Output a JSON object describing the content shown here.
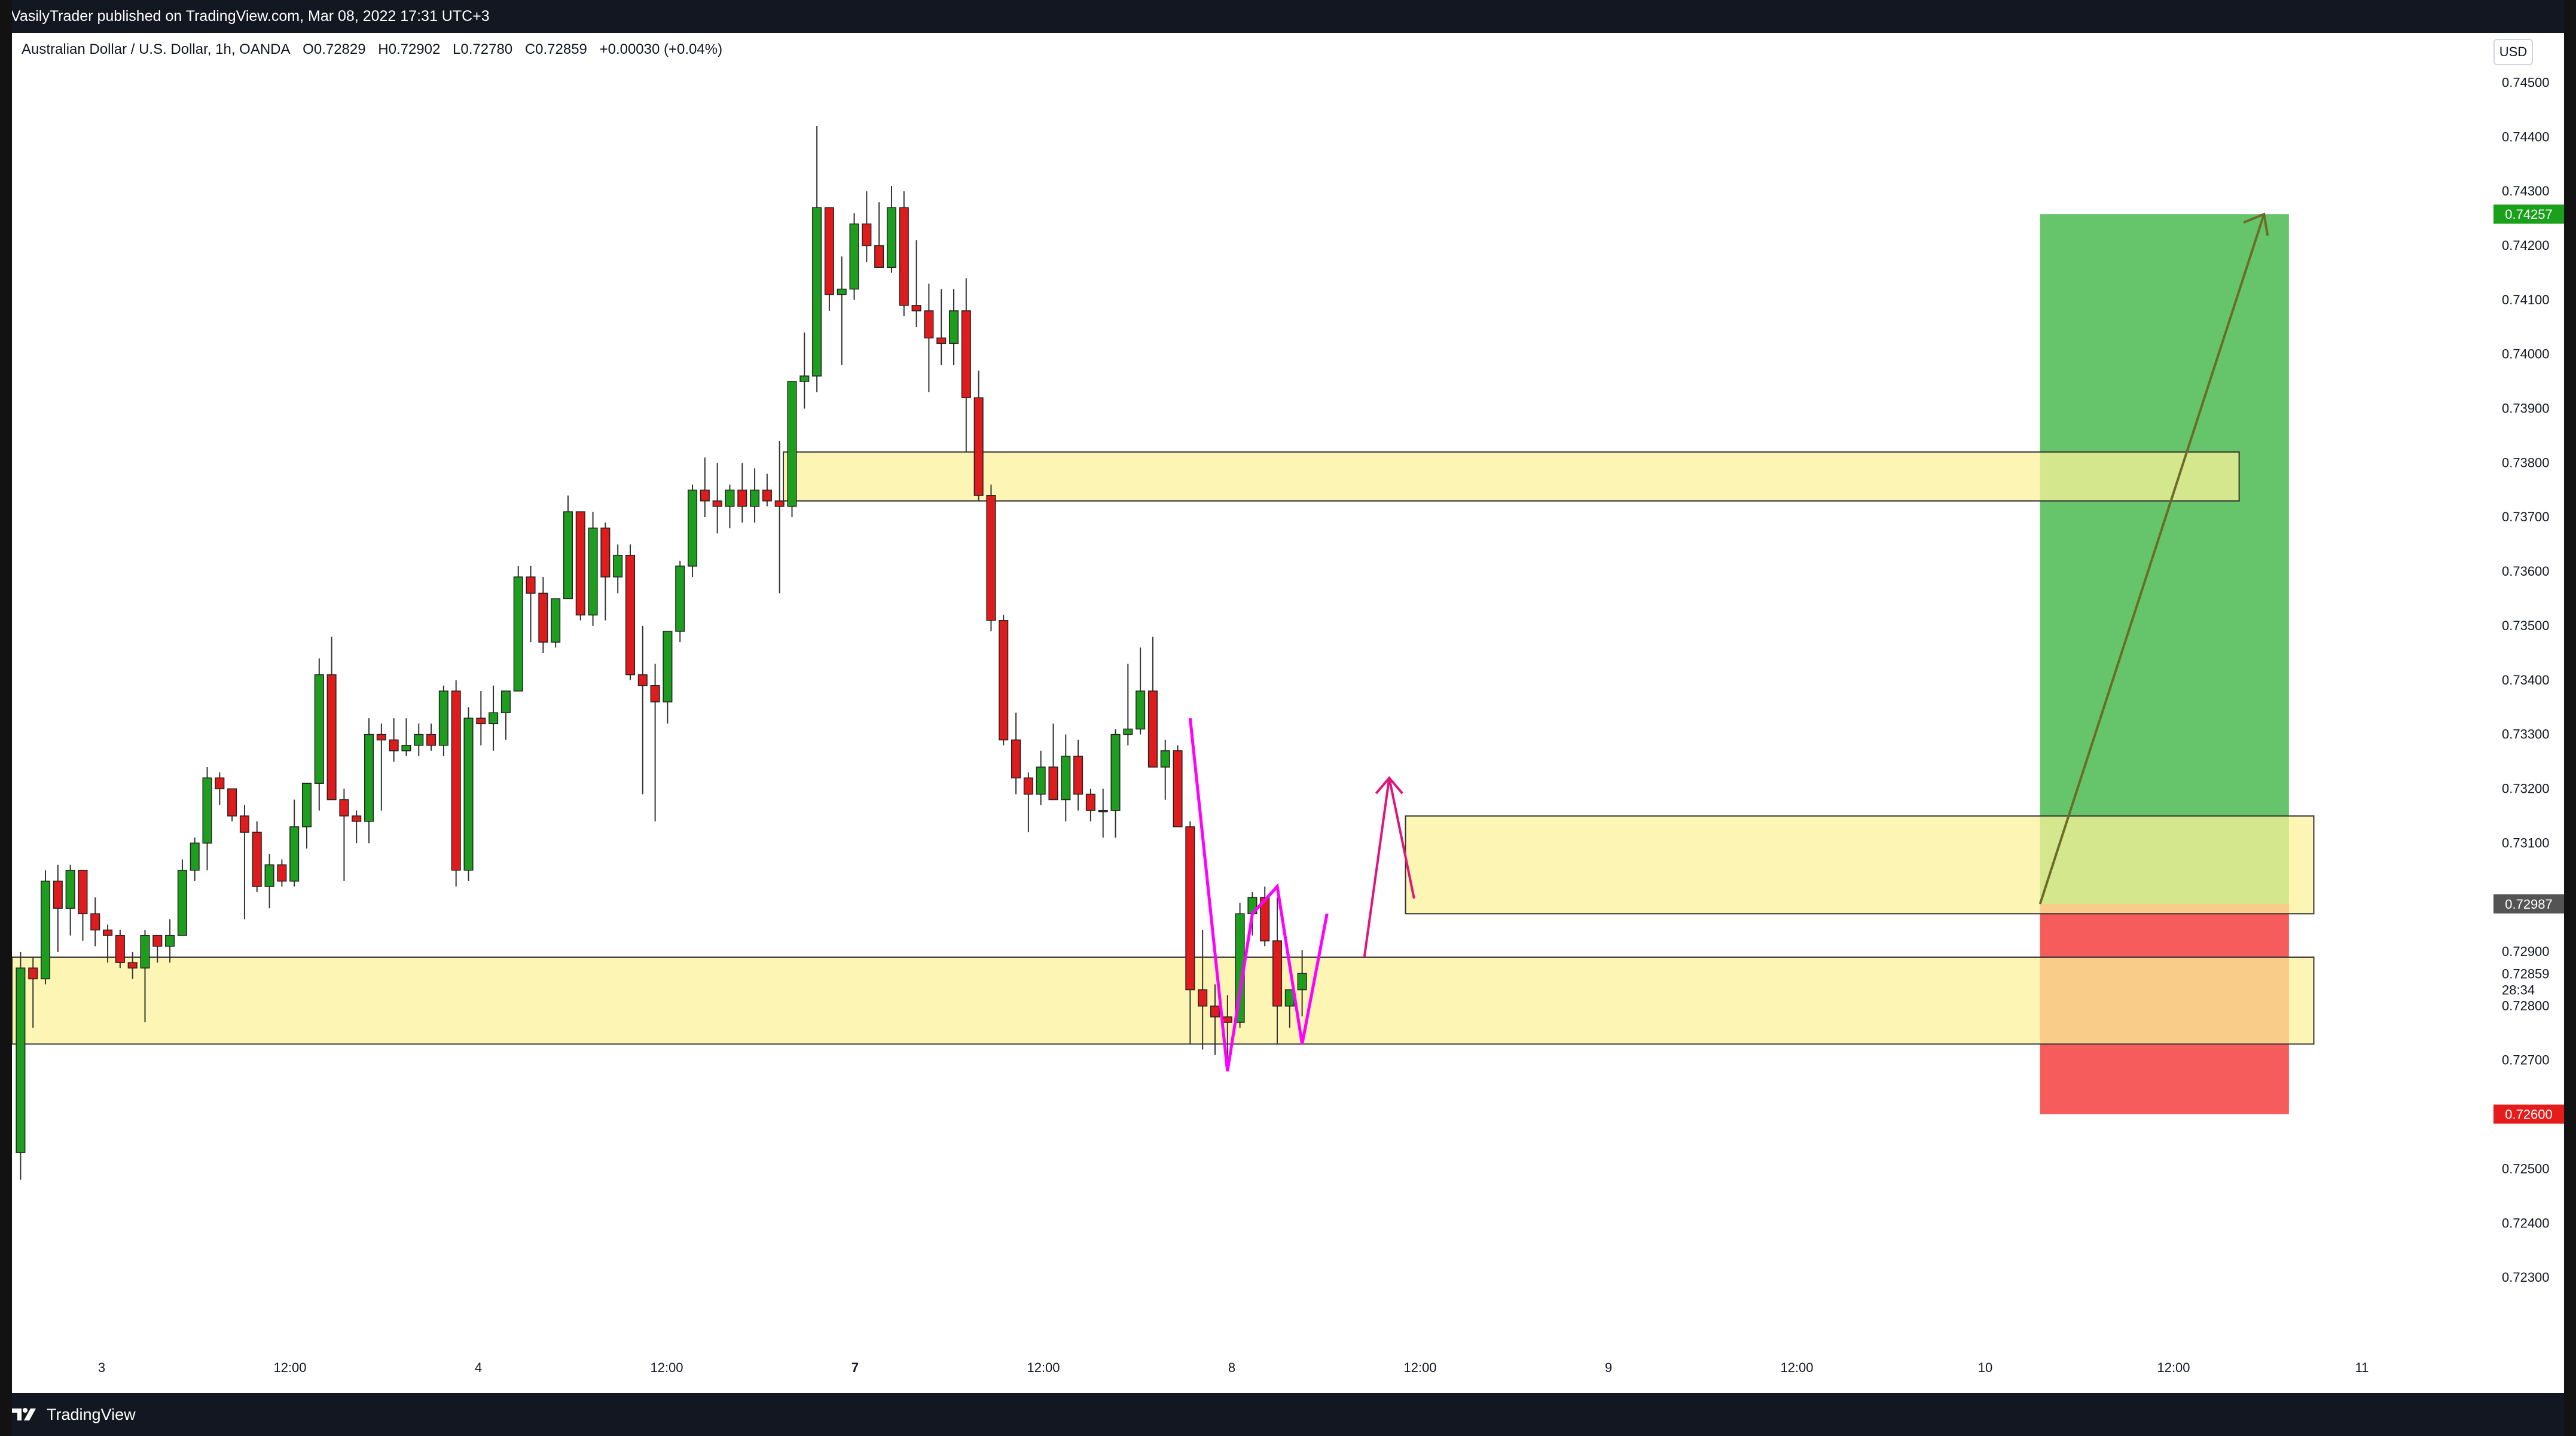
{
  "header": {
    "published": "VasilyTrader published on TradingView.com, Mar 08, 2022 17:31 UTC+3"
  },
  "legend": {
    "symbol": "Australian Dollar / U.S. Dollar, 1h, OANDA",
    "open": "O0.72829",
    "high": "H0.72902",
    "low": "L0.72780",
    "close": "C0.72859",
    "change": "+0.00030 (+0.04%)"
  },
  "currency": "USD",
  "footer": {
    "brand": "TradingView"
  },
  "colors": {
    "up": "#1e9e1e",
    "down": "#e01b1b",
    "zone_fill": "#fbf29a",
    "zone_stroke": "#333333",
    "target_fill": "#66c56a",
    "stop_fill": "#f75c5c",
    "arrow_magenta": "#ff00ff",
    "arrow_pink": "#e0157a",
    "arrow_olive": "#6b6b2a",
    "target_tag": "#1aa01a",
    "stop_tag": "#e51c1c",
    "price_tag": "#545454"
  },
  "chart_data": {
    "type": "candlestick",
    "title": "",
    "ylim": [
      0.722,
      0.7455
    ],
    "y_ticks": [
      "0.74500",
      "0.74400",
      "0.74300",
      "0.74200",
      "0.74100",
      "0.74000",
      "0.73900",
      "0.73800",
      "0.73700",
      "0.73600",
      "0.73500",
      "0.73400",
      "0.73300",
      "0.73200",
      "0.73100",
      "0.72900",
      "0.72800",
      "0.72700",
      "0.72500",
      "0.72400",
      "0.72300"
    ],
    "x_ticks": [
      "3",
      "12:00",
      "4",
      "12:00",
      "7",
      "12:00",
      "8",
      "12:00",
      "9",
      "12:00",
      "10",
      "12:00",
      "11"
    ],
    "x_tick_bold": [
      false,
      false,
      false,
      false,
      true,
      false,
      false,
      false,
      false,
      false,
      false,
      false,
      false
    ],
    "x_range_bars": [
      0,
      198
    ],
    "candles": [
      [
        0.72529,
        0.72899,
        0.72479,
        0.72869
      ],
      [
        0.72869,
        0.72889,
        0.72759,
        0.72849
      ],
      [
        0.72849,
        0.73049,
        0.72839,
        0.73029
      ],
      [
        0.73029,
        0.73059,
        0.72899,
        0.72979
      ],
      [
        0.72979,
        0.73059,
        0.72929,
        0.73049
      ],
      [
        0.73049,
        0.73049,
        0.72919,
        0.72969
      ],
      [
        0.72969,
        0.72999,
        0.72909,
        0.72939
      ],
      [
        0.72939,
        0.72949,
        0.72879,
        0.72929
      ],
      [
        0.72929,
        0.72939,
        0.72869,
        0.72879
      ],
      [
        0.72879,
        0.72899,
        0.72849,
        0.72869
      ],
      [
        0.72869,
        0.72939,
        0.72769,
        0.72929
      ],
      [
        0.72929,
        0.72929,
        0.72879,
        0.72909
      ],
      [
        0.72909,
        0.72959,
        0.72879,
        0.72929
      ],
      [
        0.72929,
        0.73069,
        0.72929,
        0.73049
      ],
      [
        0.73049,
        0.73109,
        0.73029,
        0.73099
      ],
      [
        0.73099,
        0.73239,
        0.73049,
        0.73219
      ],
      [
        0.73219,
        0.73229,
        0.73169,
        0.73199
      ],
      [
        0.73199,
        0.73199,
        0.73139,
        0.73149
      ],
      [
        0.73149,
        0.73169,
        0.72959,
        0.73119
      ],
      [
        0.73119,
        0.73139,
        0.73009,
        0.73019
      ],
      [
        0.73019,
        0.73079,
        0.72979,
        0.73059
      ],
      [
        0.73059,
        0.73069,
        0.73019,
        0.73029
      ],
      [
        0.73029,
        0.73179,
        0.73019,
        0.73129
      ],
      [
        0.73129,
        0.73209,
        0.73089,
        0.73209
      ],
      [
        0.73209,
        0.73439,
        0.73159,
        0.73409
      ],
      [
        0.73409,
        0.73479,
        0.73189,
        0.73179
      ],
      [
        0.73179,
        0.73199,
        0.73029,
        0.73149
      ],
      [
        0.73149,
        0.73159,
        0.73099,
        0.73139
      ],
      [
        0.73139,
        0.73329,
        0.73099,
        0.73299
      ],
      [
        0.73299,
        0.73319,
        0.73159,
        0.73289
      ],
      [
        0.73289,
        0.73329,
        0.73249,
        0.73269
      ],
      [
        0.73269,
        0.73329,
        0.73259,
        0.73279
      ],
      [
        0.73279,
        0.73319,
        0.73259,
        0.73299
      ],
      [
        0.73299,
        0.73319,
        0.73269,
        0.73279
      ],
      [
        0.73279,
        0.73389,
        0.73259,
        0.73379
      ],
      [
        0.73379,
        0.73399,
        0.73019,
        0.73049
      ],
      [
        0.73049,
        0.73349,
        0.73029,
        0.73329
      ],
      [
        0.73329,
        0.73379,
        0.73279,
        0.73319
      ],
      [
        0.73319,
        0.73389,
        0.73269,
        0.73339
      ],
      [
        0.73339,
        0.73379,
        0.73289,
        0.73379
      ],
      [
        0.73379,
        0.73609,
        0.73379,
        0.73589
      ],
      [
        0.73589,
        0.73609,
        0.73469,
        0.73559
      ],
      [
        0.73559,
        0.73589,
        0.73449,
        0.73469
      ],
      [
        0.73469,
        0.73549,
        0.73459,
        0.73549
      ],
      [
        0.73549,
        0.73739,
        0.73549,
        0.73709
      ],
      [
        0.73709,
        0.73709,
        0.73509,
        0.73519
      ],
      [
        0.73519,
        0.73709,
        0.73499,
        0.73679
      ],
      [
        0.73679,
        0.73689,
        0.73509,
        0.73589
      ],
      [
        0.73589,
        0.73649,
        0.73559,
        0.73629
      ],
      [
        0.73629,
        0.73649,
        0.73399,
        0.73409
      ],
      [
        0.73409,
        0.73499,
        0.73189,
        0.73389
      ],
      [
        0.73389,
        0.73429,
        0.73139,
        0.73359
      ],
      [
        0.73359,
        0.73489,
        0.73319,
        0.73489
      ],
      [
        0.73489,
        0.73619,
        0.73469,
        0.73609
      ],
      [
        0.73609,
        0.73759,
        0.73589,
        0.73749
      ],
      [
        0.73749,
        0.73809,
        0.73699,
        0.73729
      ],
      [
        0.73729,
        0.73799,
        0.73669,
        0.73719
      ],
      [
        0.73719,
        0.73759,
        0.73679,
        0.73749
      ],
      [
        0.73749,
        0.73799,
        0.73689,
        0.73719
      ],
      [
        0.73719,
        0.73789,
        0.73689,
        0.73749
      ],
      [
        0.73749,
        0.73779,
        0.73719,
        0.73729
      ],
      [
        0.73729,
        0.73839,
        0.73559,
        0.73719
      ],
      [
        0.73719,
        0.73949,
        0.73699,
        0.73949
      ],
      [
        0.73949,
        0.74039,
        0.73899,
        0.73959
      ],
      [
        0.73959,
        0.74419,
        0.73929,
        0.74269
      ],
      [
        0.74269,
        0.74269,
        0.74079,
        0.74109
      ],
      [
        0.74109,
        0.74179,
        0.73979,
        0.74119
      ],
      [
        0.74119,
        0.74259,
        0.74099,
        0.74239
      ],
      [
        0.74239,
        0.74299,
        0.74169,
        0.74199
      ],
      [
        0.74199,
        0.74279,
        0.74179,
        0.74159
      ],
      [
        0.74159,
        0.74309,
        0.74149,
        0.74269
      ],
      [
        0.74269,
        0.74299,
        0.74069,
        0.74089
      ],
      [
        0.74089,
        0.74209,
        0.74049,
        0.74079
      ],
      [
        0.74079,
        0.74129,
        0.73929,
        0.74029
      ],
      [
        0.74029,
        0.74119,
        0.73979,
        0.74019
      ],
      [
        0.74019,
        0.74119,
        0.73979,
        0.74079
      ],
      [
        0.74079,
        0.74139,
        0.73819,
        0.73919
      ],
      [
        0.73919,
        0.73969,
        0.73729,
        0.73739
      ],
      [
        0.73739,
        0.73759,
        0.73489,
        0.73509
      ],
      [
        0.73509,
        0.73519,
        0.73279,
        0.73289
      ],
      [
        0.73289,
        0.73339,
        0.73189,
        0.73219
      ],
      [
        0.73219,
        0.73229,
        0.73119,
        0.73189
      ],
      [
        0.73189,
        0.73269,
        0.73169,
        0.73239
      ],
      [
        0.73239,
        0.73319,
        0.73179,
        0.73179
      ],
      [
        0.73179,
        0.73299,
        0.73139,
        0.73259
      ],
      [
        0.73259,
        0.73289,
        0.73159,
        0.73189
      ],
      [
        0.73189,
        0.73199,
        0.73139,
        0.73159
      ],
      [
        0.73159,
        0.73199,
        0.73109,
        0.73159
      ],
      [
        0.73159,
        0.73309,
        0.73109,
        0.73299
      ],
      [
        0.73299,
        0.73429,
        0.73279,
        0.73309
      ],
      [
        0.73309,
        0.73459,
        0.73299,
        0.73379
      ],
      [
        0.73379,
        0.73479,
        0.73239,
        0.73239
      ],
      [
        0.73239,
        0.73289,
        0.73179,
        0.73269
      ],
      [
        0.73269,
        0.73279,
        0.73139,
        0.73129
      ],
      [
        0.73129,
        0.73139,
        0.72729,
        0.72829
      ],
      [
        0.72829,
        0.72939,
        0.72719,
        0.72799
      ],
      [
        0.72799,
        0.72839,
        0.72709,
        0.72779
      ],
      [
        0.72779,
        0.72819,
        0.72699,
        0.72769
      ],
      [
        0.72769,
        0.72989,
        0.72759,
        0.72969
      ],
      [
        0.72969,
        0.73009,
        0.72929,
        0.72999
      ],
      [
        0.72999,
        0.73019,
        0.72909,
        0.72919
      ],
      [
        0.72919,
        0.72999,
        0.72729,
        0.72799
      ],
      [
        0.72799,
        0.72829,
        0.72759,
        0.72829
      ],
      [
        0.72829,
        0.72902,
        0.7278,
        0.72859
      ]
    ],
    "zones": [
      {
        "name": "zone-upper",
        "price_top": 0.73819,
        "price_bottom": 0.73729,
        "from_bar": 62,
        "to_bar": 179
      },
      {
        "name": "zone-middle",
        "price_top": 0.73149,
        "price_bottom": 0.72969,
        "from_bar": 112,
        "to_bar": 185
      },
      {
        "name": "zone-lower",
        "price_top": 0.72889,
        "price_bottom": 0.72729,
        "from_bar": 0,
        "to_bar": 185
      }
    ],
    "position": {
      "entry": 0.72987,
      "target": 0.74257,
      "stop": 0.726,
      "from_bar": 163,
      "to_bar": 183
    },
    "price_tags": [
      {
        "label": "0.74257",
        "price": 0.74257,
        "kind": "target"
      },
      {
        "label": "0.72987",
        "price": 0.72987,
        "kind": "entry"
      },
      {
        "label": "0.72859",
        "price": 0.72859,
        "kind": "current"
      },
      {
        "label": "28:34",
        "price": 0.72829,
        "kind": "countdown"
      },
      {
        "label": "0.72600",
        "price": 0.726,
        "kind": "stop"
      }
    ]
  }
}
